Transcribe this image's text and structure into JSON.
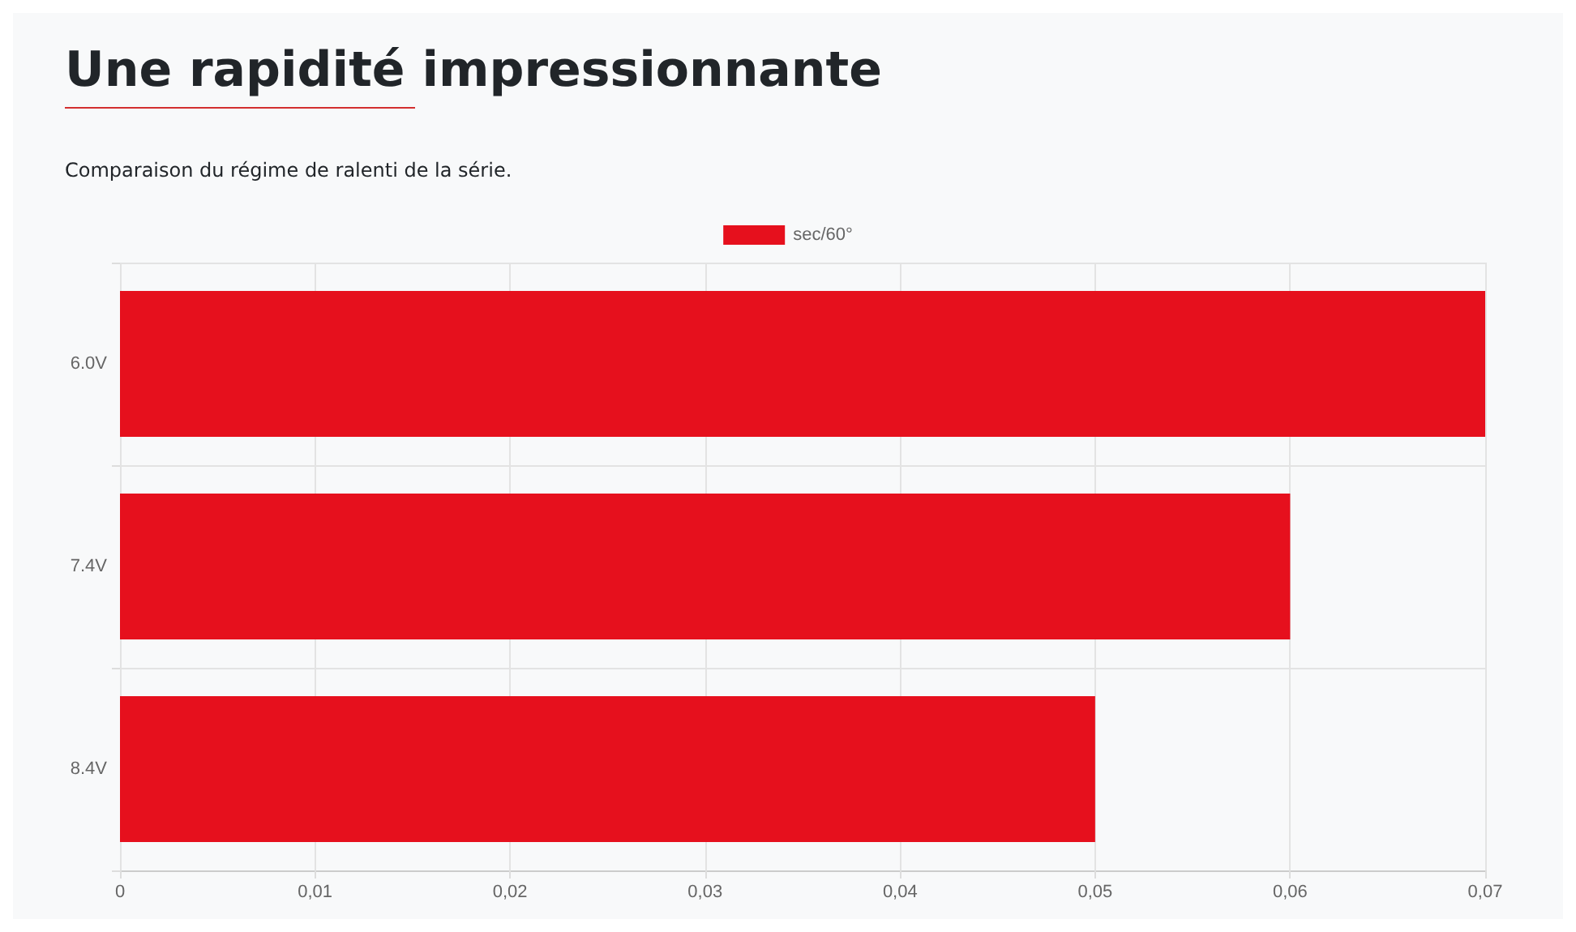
{
  "chart_data": {
    "type": "bar",
    "orientation": "horizontal",
    "title": "Une rapidité impressionnante",
    "subtitle": "Comparaison du régime de ralenti de la série.",
    "categories": [
      "6.0V",
      "7.4V",
      "8.4V"
    ],
    "series": [
      {
        "name": "sec/60°",
        "color": "#e6101d",
        "values": [
          0.07,
          0.06,
          0.05
        ]
      }
    ],
    "xlim": [
      0,
      0.07
    ],
    "xticks": [
      0,
      {
        "value": 0.01,
        "label": "0,01"
      },
      {
        "value": 0.02,
        "label": "0,02"
      },
      {
        "value": 0.03,
        "label": "0,03"
      },
      {
        "value": 0.04,
        "label": "0,04"
      },
      {
        "value": 0.05,
        "label": "0,05"
      },
      {
        "value": 0.06,
        "label": "0,06"
      },
      {
        "value": 0.07,
        "label": "0,07"
      }
    ],
    "grid": true,
    "legend": "top"
  }
}
